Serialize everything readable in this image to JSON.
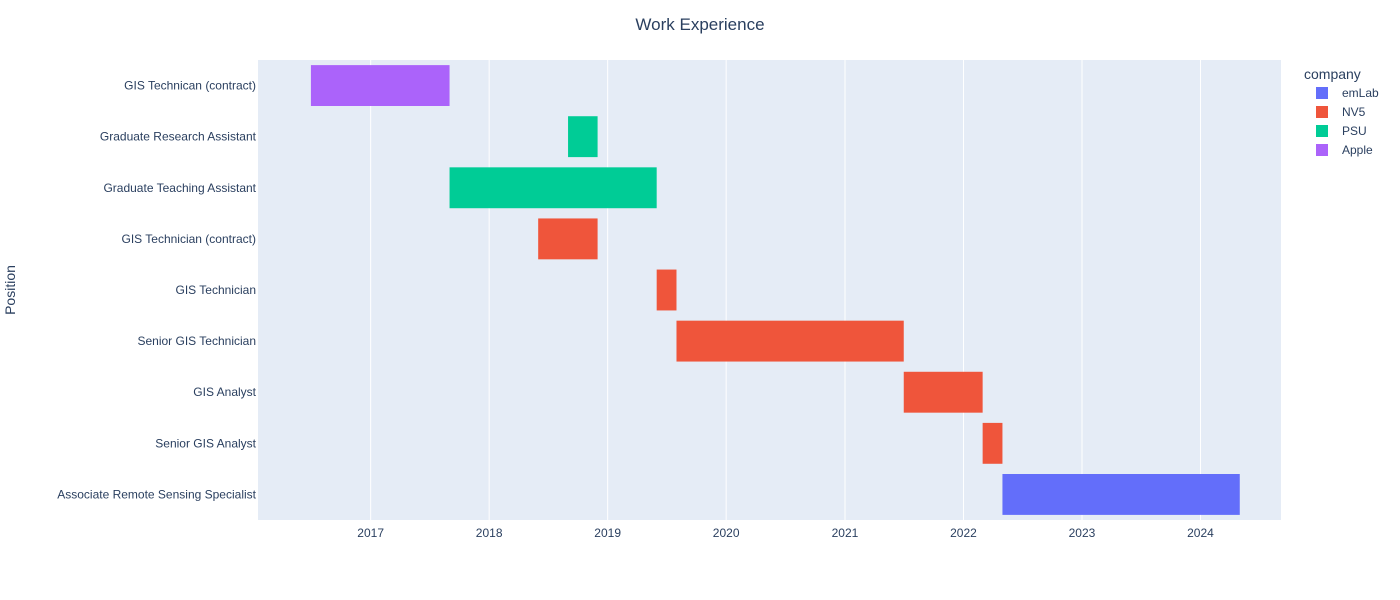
{
  "chart_data": {
    "type": "timeline",
    "title": "Work Experience",
    "ylabel": "Position",
    "xlabel": "",
    "x_range": [
      "2016-01-20",
      "2024-09-05"
    ],
    "x_ticks": [
      "2017",
      "2018",
      "2019",
      "2020",
      "2021",
      "2022",
      "2023",
      "2024"
    ],
    "grid": true,
    "legend": {
      "title": "company",
      "position": "top-right"
    },
    "categories": [
      "GIS Technican (contract)",
      "Graduate Research Assistant",
      "Graduate Teaching Assistant",
      "GIS Technician (contract)",
      "GIS Technician",
      "Senior GIS Technician",
      "GIS Analyst",
      "Senior GIS Analyst",
      "Associate Remote Sensing Specialist"
    ],
    "series": [
      {
        "name": "emLab",
        "color": "#636efa",
        "tasks": [
          {
            "position": "Associate Remote Sensing Specialist",
            "start": "2022-05-01",
            "end": "2024-05-01"
          }
        ]
      },
      {
        "name": "NV5",
        "color": "#ef553b",
        "tasks": [
          {
            "position": "GIS Technician (contract)",
            "start": "2018-06-01",
            "end": "2018-12-01"
          },
          {
            "position": "GIS Technician",
            "start": "2019-06-01",
            "end": "2019-08-01"
          },
          {
            "position": "Senior GIS Technician",
            "start": "2019-08-01",
            "end": "2021-07-01"
          },
          {
            "position": "GIS Analyst",
            "start": "2021-07-01",
            "end": "2022-03-01"
          },
          {
            "position": "Senior GIS Analyst",
            "start": "2022-03-01",
            "end": "2022-05-01"
          }
        ]
      },
      {
        "name": "PSU",
        "color": "#00cc96",
        "tasks": [
          {
            "position": "Graduate Research Assistant",
            "start": "2018-09-01",
            "end": "2018-12-01"
          },
          {
            "position": "Graduate Teaching Assistant",
            "start": "2017-09-01",
            "end": "2019-06-01"
          }
        ]
      },
      {
        "name": "Apple",
        "color": "#ab63fa",
        "tasks": [
          {
            "position": "GIS Technican (contract)",
            "start": "2016-07-01",
            "end": "2017-09-01"
          }
        ]
      }
    ]
  }
}
